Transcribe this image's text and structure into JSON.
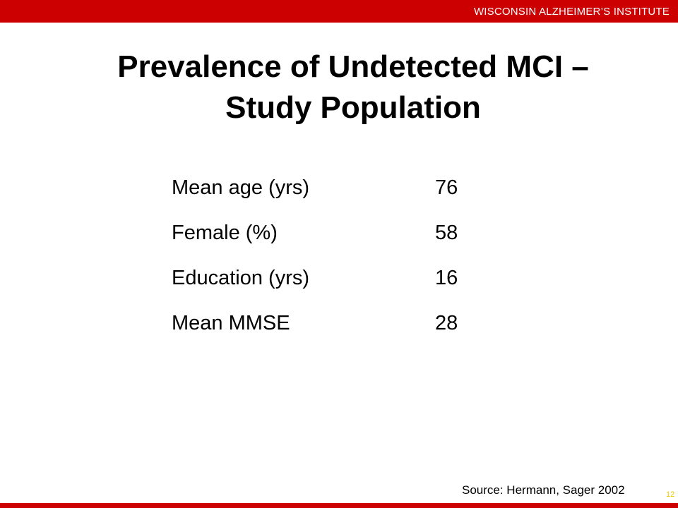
{
  "header": {
    "organization": "WISCONSIN ALZHEIMER’S INSTITUTE",
    "bar_color": "#cc0000"
  },
  "title": {
    "line1": "Prevalence of Undetected MCI –",
    "line2": "Study Population"
  },
  "stats": [
    {
      "label": "Mean age (yrs)",
      "value": "76"
    },
    {
      "label": "Female (%)",
      "value": "58"
    },
    {
      "label": "Education (yrs)",
      "value": "16"
    },
    {
      "label": "Mean MMSE",
      "value": "28"
    }
  ],
  "footer": {
    "source": "Source:  Hermann, Sager 2002",
    "slide_number": "12"
  }
}
